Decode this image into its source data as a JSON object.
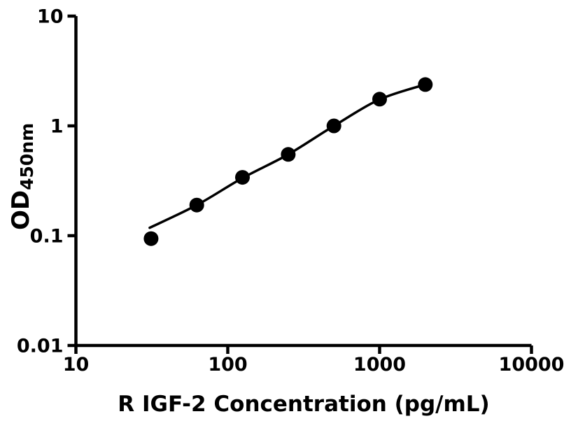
{
  "figure": {
    "background_color": "#ffffff",
    "ink_color": "#000000"
  },
  "chart_data": {
    "type": "scatter",
    "title": "",
    "xlabel": "R IGF-2 Concentration (pg/mL)",
    "ylabel_main": "OD",
    "ylabel_sub": "450nm",
    "x_scale": "log",
    "y_scale": "log",
    "xlim": [
      10,
      10000
    ],
    "ylim": [
      0.01,
      10
    ],
    "x_ticks": [
      10,
      100,
      1000,
      10000
    ],
    "x_tick_labels": [
      "10",
      "100",
      "1000",
      "10000"
    ],
    "y_ticks": [
      10,
      1,
      0.1,
      0.01
    ],
    "y_tick_labels": [
      "10",
      "1",
      "0.1",
      "0.01"
    ],
    "grid": false,
    "legend": null,
    "series": [
      {
        "name": "standard-data-points",
        "type": "scatter",
        "marker": "filled-circle",
        "color": "#000000",
        "x": [
          31.25,
          62.5,
          125,
          250,
          500,
          1000,
          2000
        ],
        "y": [
          0.094,
          0.19,
          0.34,
          0.55,
          1.0,
          1.75,
          2.38
        ]
      },
      {
        "name": "4pl-fit-curve",
        "type": "line",
        "color": "#000000",
        "x": [
          30.6,
          62.5,
          125,
          250,
          500,
          1000,
          2000
        ],
        "y": [
          0.118,
          0.19,
          0.335,
          0.55,
          1.0,
          1.74,
          2.38
        ]
      }
    ]
  }
}
